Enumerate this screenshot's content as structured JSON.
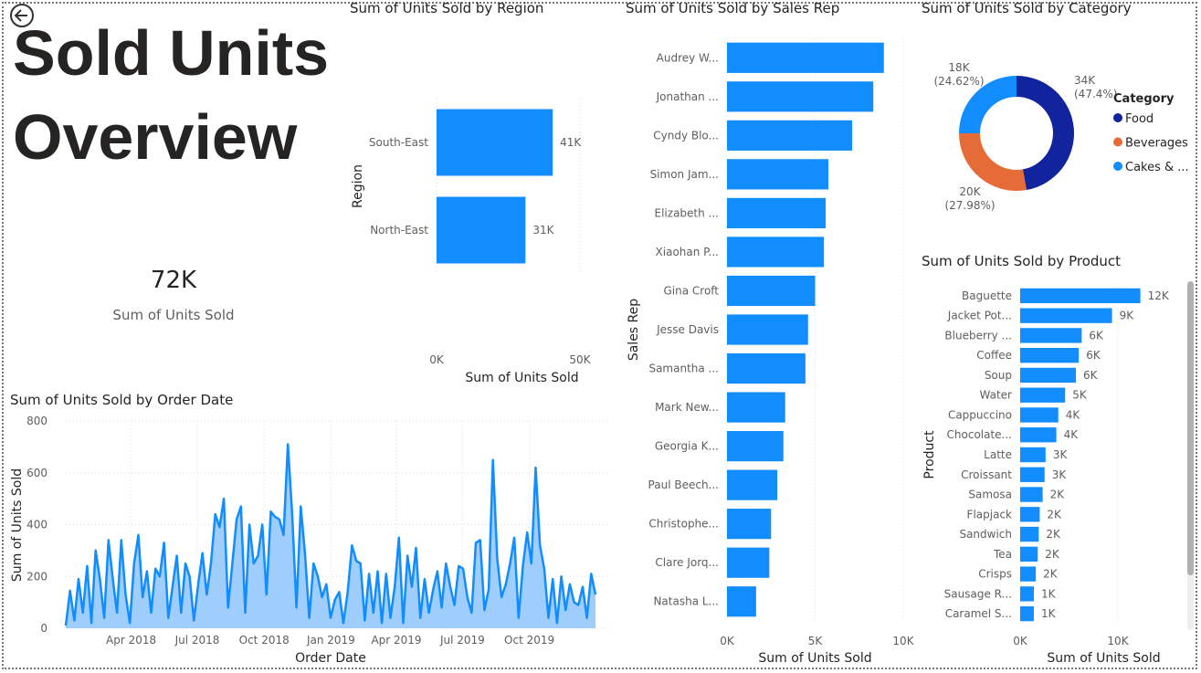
{
  "page": {
    "title": "Sold Units Overview",
    "back_icon": "back-arrow-icon"
  },
  "kpi": {
    "value": "72K",
    "label": "Sum of Units Sold"
  },
  "colors": {
    "bar": "#118DFF",
    "food": "#12239E",
    "beverages": "#E66C37",
    "cakes": "#118DFF",
    "area": "#9fcdfc"
  },
  "chart_data": [
    {
      "id": "region",
      "type": "bar",
      "orientation": "horizontal",
      "title": "Sum of Units Sold by Region",
      "xlabel": "Sum of Units Sold",
      "ylabel": "Region",
      "categories": [
        "South-East",
        "North-East"
      ],
      "values": [
        40.5,
        31
      ],
      "data_labels": [
        "41K",
        "31K"
      ],
      "xlim": [
        0,
        50
      ],
      "xticks": [
        "0K",
        "50K"
      ],
      "unit": "K",
      "grid": true
    },
    {
      "id": "salesrep",
      "type": "bar",
      "orientation": "horizontal",
      "title": "Sum of Units Sold by Sales Rep",
      "xlabel": "Sum of Units Sold",
      "ylabel": "Sales Rep",
      "categories": [
        "Audrey W...",
        "Jonathan ...",
        "Cyndy Blo...",
        "Simon Jam...",
        "Elizabeth ...",
        "Xiaohan P...",
        "Gina Croft",
        "Jesse Davis",
        "Samantha ...",
        "Mark New...",
        "Georgia K...",
        "Paul Beech...",
        "Christophe...",
        "Clare Jorq...",
        "Natasha L..."
      ],
      "values": [
        8.9,
        8.3,
        7.1,
        5.75,
        5.6,
        5.5,
        5.0,
        4.6,
        4.45,
        3.3,
        3.2,
        2.85,
        2.5,
        2.4,
        1.65
      ],
      "xlim": [
        0,
        10
      ],
      "xticks": [
        "0K",
        "5K",
        "10K"
      ],
      "unit": "K",
      "grid": true
    },
    {
      "id": "category",
      "type": "pie",
      "donut": true,
      "title": "Sum of Units Sold by Category",
      "legend_title": "Category",
      "legend_position": "right",
      "slices": [
        {
          "name": "Food",
          "value": 34,
          "label": "34K",
          "pct": "(47.4%)",
          "color": "#12239E"
        },
        {
          "name": "Beverages",
          "value": 20,
          "label": "20K",
          "pct": "(27.98%)",
          "color": "#E66C37"
        },
        {
          "name": "Cakes & ...",
          "value": 18,
          "label": "18K",
          "pct": "(24.62%)",
          "color": "#118DFF"
        }
      ]
    },
    {
      "id": "product",
      "type": "bar",
      "orientation": "horizontal",
      "title": "Sum of Units Sold by Product",
      "xlabel": "Sum of Units Sold",
      "ylabel": "Product",
      "categories": [
        "Baguette",
        "Jacket Pot...",
        "Blueberry ...",
        "Coffee",
        "Soup",
        "Water",
        "Cappuccino",
        "Chocolate...",
        "Latte",
        "Croissant",
        "Samosa",
        "Flapjack",
        "Sandwich",
        "Tea",
        "Crisps",
        "Sausage R...",
        "Caramel S..."
      ],
      "values": [
        12.3,
        9.4,
        6.3,
        6.0,
        5.7,
        4.6,
        3.9,
        3.7,
        2.6,
        2.5,
        2.3,
        2.0,
        1.9,
        1.8,
        1.6,
        1.4,
        1.4
      ],
      "data_labels": [
        "12K",
        "9K",
        "6K",
        "6K",
        "6K",
        "5K",
        "4K",
        "4K",
        "3K",
        "3K",
        "2K",
        "2K",
        "2K",
        "2K",
        "2K",
        "1K",
        "1K"
      ],
      "xlim": [
        0,
        10
      ],
      "xticks": [
        "0K",
        "10K"
      ],
      "unit": "K",
      "grid": true
    },
    {
      "id": "orderdate",
      "type": "area",
      "title": "Sum of Units Sold by Order Date",
      "xlabel": "Order Date",
      "ylabel": "Sum of Units Sold",
      "xlim": [
        "2018-01-01",
        "2019-12-31"
      ],
      "ylim": [
        0,
        800
      ],
      "xticks": [
        {
          "date": "2018-04-01",
          "label": "Apr 2018"
        },
        {
          "date": "2018-07-01",
          "label": "Jul 2018"
        },
        {
          "date": "2018-10-01",
          "label": "Oct 2018"
        },
        {
          "date": "2019-01-01",
          "label": "Jan 2019"
        },
        {
          "date": "2019-04-01",
          "label": "Apr 2019"
        },
        {
          "date": "2019-07-01",
          "label": "Jul 2019"
        },
        {
          "date": "2019-10-01",
          "label": "Oct 2019"
        }
      ],
      "yticks": [
        0,
        200,
        400,
        600,
        800
      ],
      "grid": true,
      "values": [
        10,
        145,
        30,
        190,
        60,
        240,
        20,
        300,
        190,
        40,
        340,
        190,
        60,
        340,
        130,
        20,
        250,
        360,
        120,
        220,
        60,
        230,
        200,
        330,
        40,
        160,
        280,
        60,
        250,
        200,
        30,
        170,
        290,
        130,
        250,
        440,
        390,
        500,
        80,
        250,
        420,
        470,
        60,
        400,
        250,
        280,
        400,
        130,
        450,
        430,
        420,
        360,
        710,
        440,
        80,
        470,
        290,
        40,
        250,
        200,
        120,
        170,
        40,
        110,
        140,
        20,
        140,
        320,
        260,
        250,
        30,
        210,
        60,
        220,
        20,
        210,
        40,
        160,
        350,
        20,
        280,
        160,
        310,
        40,
        190,
        60,
        150,
        220,
        80,
        250,
        160,
        90,
        240,
        230,
        120,
        60,
        330,
        340,
        70,
        150,
        650,
        270,
        120,
        170,
        250,
        350,
        40,
        240,
        370,
        250,
        620,
        320,
        230,
        40,
        190,
        20,
        200,
        70,
        170,
        100,
        90,
        160,
        40,
        210,
        130
      ]
    }
  ]
}
